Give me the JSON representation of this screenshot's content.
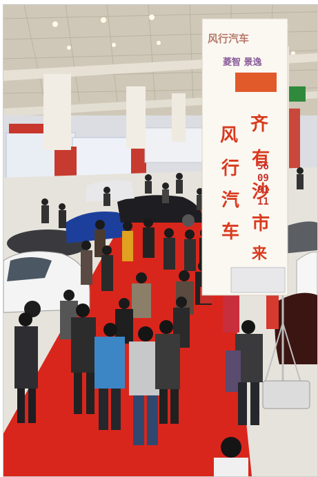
{
  "banner": {
    "top_small_text": "风行汽车",
    "sub_text": "菱智 景逸",
    "main_text": [
      "齐",
      "风",
      "有",
      "行",
      "沙",
      "汽",
      "市",
      "车",
      "来"
    ],
    "phone": "56099111"
  },
  "colors": {
    "carpet": "#d9261c",
    "ceiling": "#c9c2b2",
    "banner_bg": "#fbf8f2",
    "banner_text": "#d93a1e",
    "floor": "#e7e4dd"
  }
}
